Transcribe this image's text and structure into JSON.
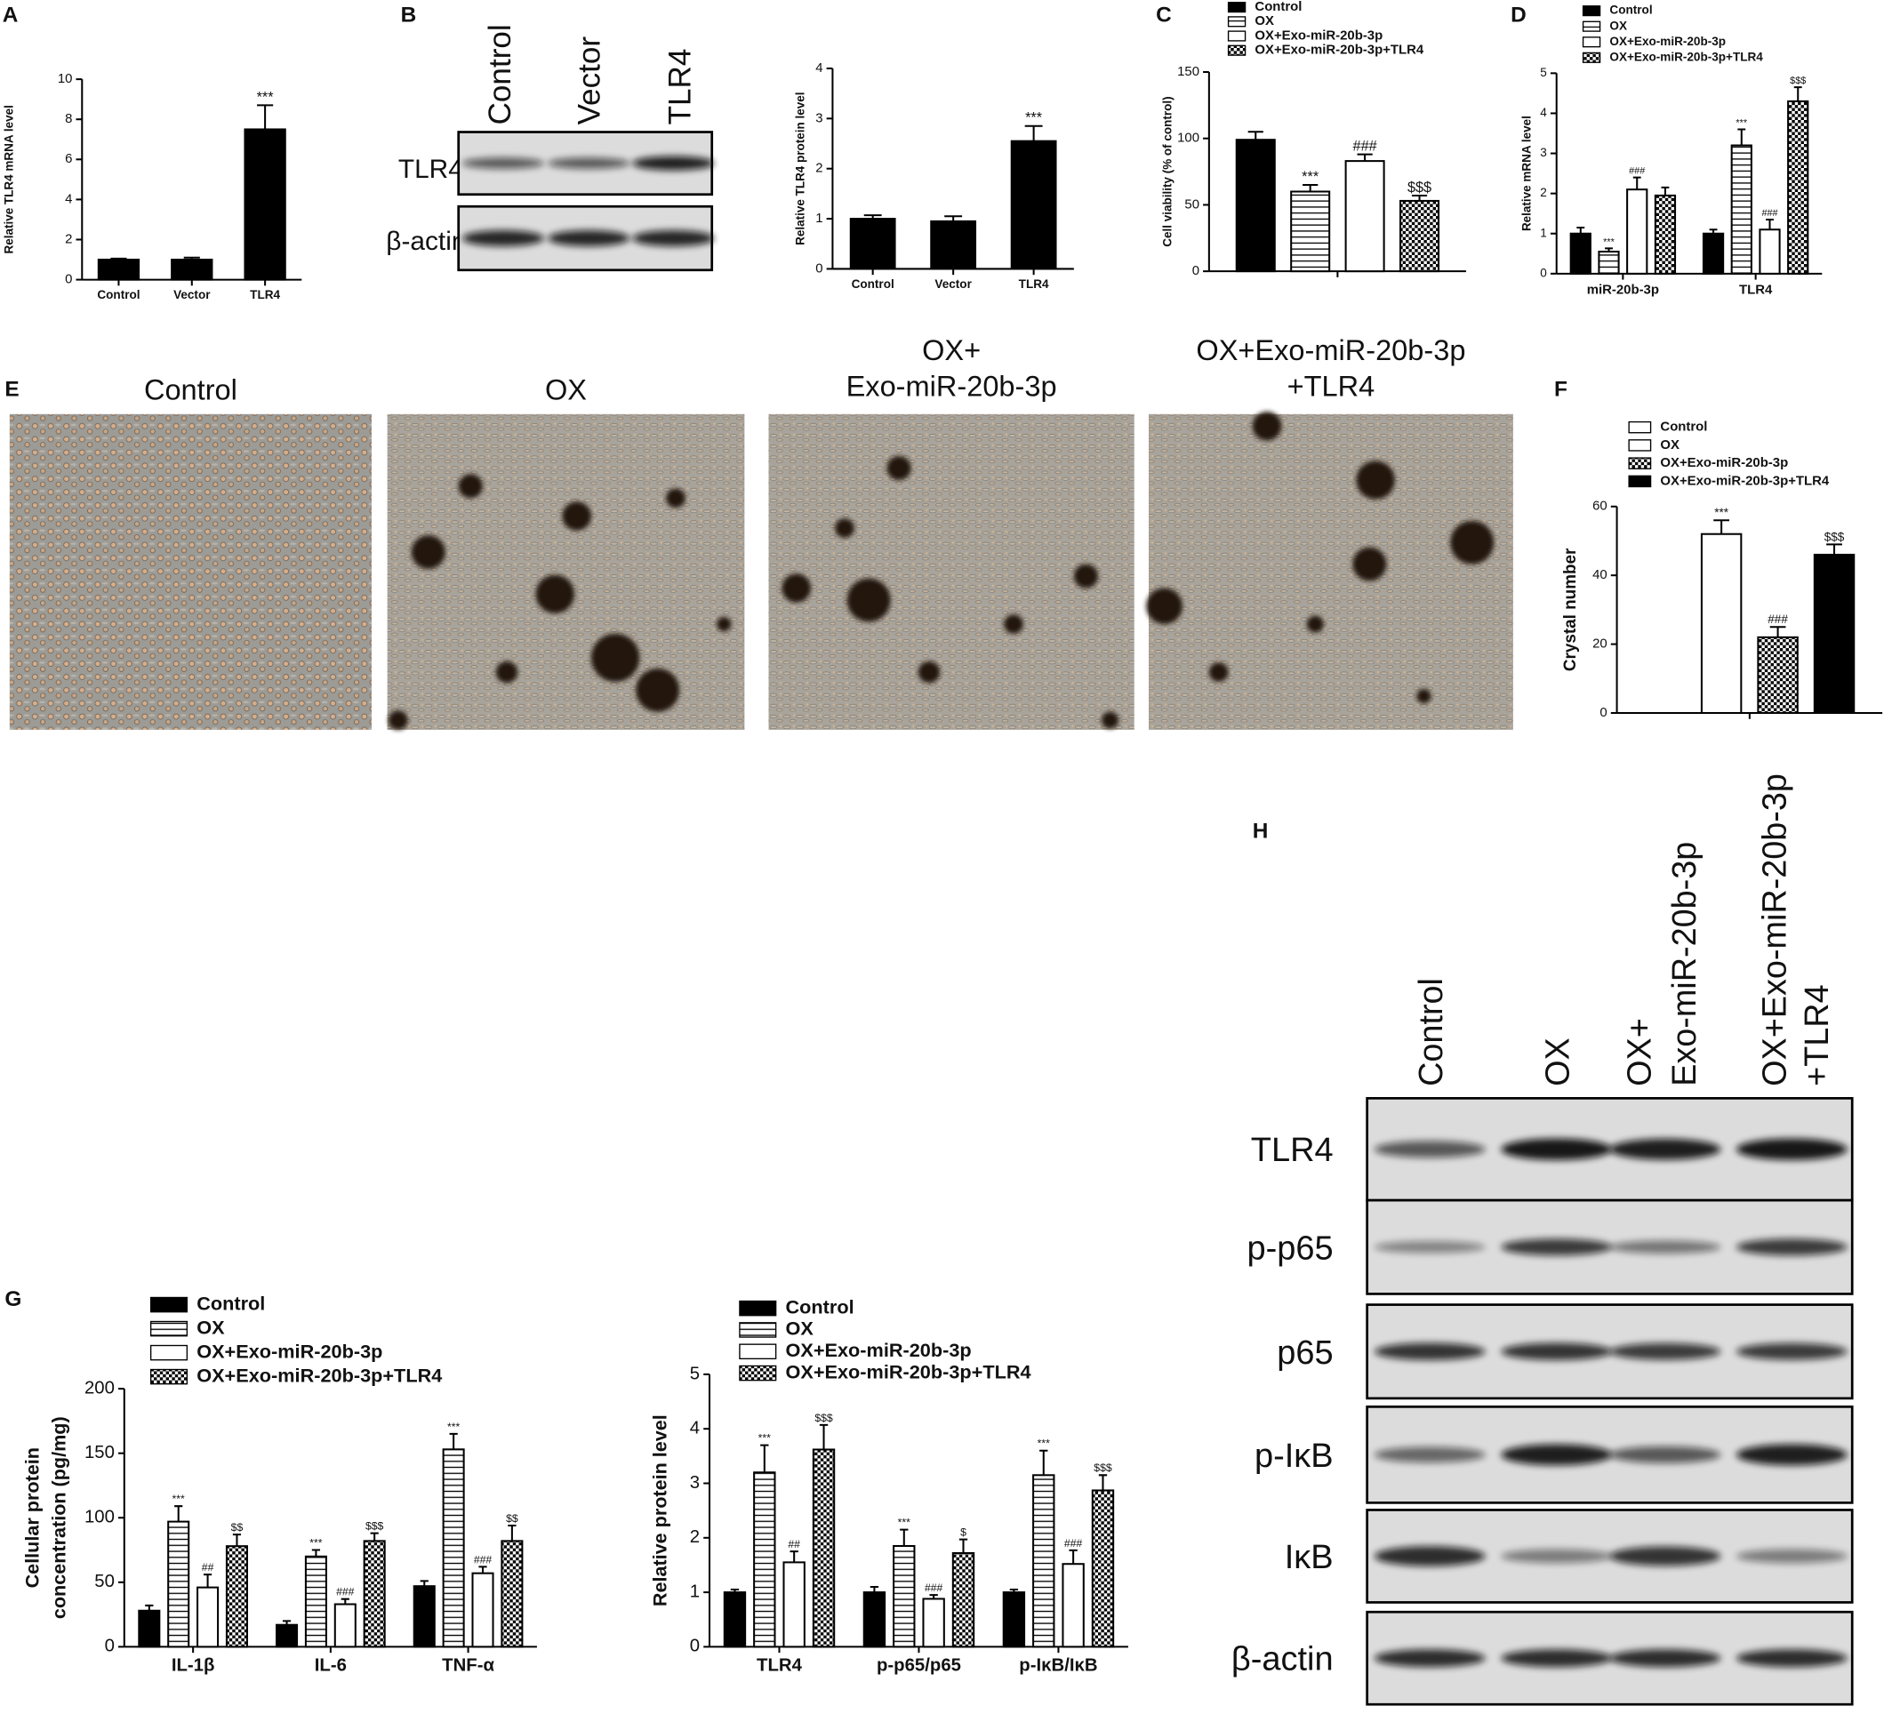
{
  "panel_labels": {
    "A": "A",
    "B": "B",
    "C": "C",
    "D": "D",
    "E": "E",
    "F": "F",
    "G": "G",
    "H": "H"
  },
  "blot_b": {
    "lanes": [
      "Control",
      "Vector",
      "TLR4"
    ],
    "rows": [
      "TLR4",
      "β-actin"
    ]
  },
  "micrographs": {
    "titles": [
      [
        "Control"
      ],
      [
        "OX"
      ],
      [
        "OX+",
        "Exo-miR-20b-3p"
      ],
      [
        "OX+Exo-miR-20b-3p",
        "+TLR4"
      ]
    ]
  },
  "blot_h": {
    "lanes": [
      [
        "Control"
      ],
      [
        "OX"
      ],
      [
        "OX+",
        "Exo-miR-20b-3p"
      ],
      [
        "OX+Exo-miR-20b-3p",
        "+TLR4"
      ]
    ],
    "rows": [
      "TLR4",
      "p-p65",
      "p65",
      "p-IκB",
      "IκB",
      "β-actin"
    ]
  },
  "chart_data": [
    {
      "type": "bar",
      "ylabel": [
        "Relative TLR4 mRNA level"
      ],
      "categories": [
        "Control",
        "Vector",
        "TLR4"
      ],
      "values": [
        1,
        1,
        7.5
      ],
      "errors": [
        0.05,
        0.1,
        1.2
      ],
      "annotations": [
        null,
        null,
        "***"
      ],
      "color": "#000000",
      "pattern": "solid",
      "ylim": [
        0,
        10
      ],
      "yticks": [
        0,
        2,
        4,
        6,
        8,
        10
      ]
    },
    {
      "type": "bar",
      "ylabel": [
        "Relative TLR4 protein level"
      ],
      "categories": [
        "Control",
        "Vector",
        "TLR4"
      ],
      "values": [
        1,
        0.95,
        2.55
      ],
      "errors": [
        0.07,
        0.1,
        0.3
      ],
      "annotations": [
        null,
        null,
        "***"
      ],
      "color": "#000000",
      "pattern": "solid",
      "ylim": [
        0,
        4
      ],
      "yticks": [
        0,
        1,
        2,
        3,
        4
      ]
    },
    {
      "type": "bar",
      "ylabel": [
        "Cell viability (% of control)"
      ],
      "categories": [
        null
      ],
      "series": [
        {
          "name": "Control",
          "color": "#000000",
          "pattern": "solid",
          "values": [
            99
          ],
          "errors": [
            6
          ],
          "annotations": [
            null
          ]
        },
        {
          "name": "OX",
          "color": "#000000",
          "pattern": "hlines",
          "values": [
            60
          ],
          "errors": [
            5
          ],
          "annotations": [
            "***"
          ]
        },
        {
          "name": "OX+Exo-miR-20b-3p",
          "color": "#000000",
          "pattern": "open",
          "values": [
            83
          ],
          "errors": [
            5
          ],
          "annotations": [
            "###"
          ]
        },
        {
          "name": "OX+Exo-miR-20b-3p+TLR4",
          "color": "#000000",
          "pattern": "checker",
          "values": [
            53
          ],
          "errors": [
            4
          ],
          "annotations": [
            "$$$"
          ]
        }
      ],
      "ylim": [
        0,
        150
      ],
      "yticks": [
        0,
        50,
        100,
        150
      ]
    },
    {
      "type": "bar",
      "ylabel": [
        "Relative mRNA level"
      ],
      "categories": [
        "miR-20b-3p",
        "TLR4"
      ],
      "series": [
        {
          "name": "Control",
          "color": "#000000",
          "pattern": "solid",
          "values": [
            1,
            1
          ],
          "errors": [
            0.15,
            0.1
          ],
          "annotations": [
            null,
            null
          ]
        },
        {
          "name": "OX",
          "color": "#000000",
          "pattern": "hlines",
          "values": [
            0.55,
            3.2
          ],
          "errors": [
            0.08,
            0.4
          ],
          "annotations": [
            "***",
            "***"
          ]
        },
        {
          "name": "OX+Exo-miR-20b-3p",
          "color": "#000000",
          "pattern": "open",
          "values": [
            2.1,
            1.1
          ],
          "errors": [
            0.3,
            0.25
          ],
          "annotations": [
            "###",
            "###"
          ]
        },
        {
          "name": "OX+Exo-miR-20b-3p+TLR4",
          "color": "#000000",
          "pattern": "checker",
          "values": [
            1.95,
            4.3
          ],
          "errors": [
            0.2,
            0.35
          ],
          "annotations": [
            null,
            "$$$"
          ]
        }
      ],
      "ylim": [
        0,
        5
      ],
      "yticks": [
        0,
        1,
        2,
        3,
        4,
        5
      ]
    },
    {
      "type": "bar",
      "ylabel": [
        "Crystal number"
      ],
      "categories": [
        null
      ],
      "series": [
        {
          "name": "Control",
          "color": "#000000",
          "pattern": "open",
          "values": [
            0
          ],
          "errors": [
            0
          ],
          "annotations": [
            null
          ]
        },
        {
          "name": "OX",
          "color": "#000000",
          "pattern": "open",
          "values": [
            52
          ],
          "errors": [
            4
          ],
          "annotations": [
            "***"
          ]
        },
        {
          "name": "OX+Exo-miR-20b-3p",
          "color": "#000000",
          "pattern": "checker",
          "values": [
            22
          ],
          "errors": [
            3
          ],
          "annotations": [
            "###"
          ]
        },
        {
          "name": "OX+Exo-miR-20b-3p+TLR4",
          "color": "#000000",
          "pattern": "solid",
          "values": [
            46
          ],
          "errors": [
            3
          ],
          "annotations": [
            "$$$"
          ]
        }
      ],
      "ylim": [
        0,
        60
      ],
      "yticks": [
        0,
        20,
        40,
        60
      ]
    },
    {
      "type": "bar",
      "ylabel": [
        "Cellular protein",
        "concentration (pg/mg)"
      ],
      "categories": [
        "IL-1β",
        "IL-6",
        "TNF-α"
      ],
      "series": [
        {
          "name": "Control",
          "color": "#000000",
          "pattern": "solid",
          "values": [
            28,
            17,
            47
          ],
          "errors": [
            4,
            3,
            4
          ],
          "annotations": [
            null,
            null,
            null
          ]
        },
        {
          "name": "OX",
          "color": "#000000",
          "pattern": "hlines",
          "values": [
            97,
            70,
            153
          ],
          "errors": [
            12,
            5,
            12
          ],
          "annotations": [
            "***",
            "***",
            "***"
          ]
        },
        {
          "name": "OX+Exo-miR-20b-3p",
          "color": "#000000",
          "pattern": "open",
          "values": [
            46,
            33,
            57
          ],
          "errors": [
            10,
            4,
            5
          ],
          "annotations": [
            "##",
            "###",
            "###"
          ]
        },
        {
          "name": "OX+Exo-miR-20b-3p+TLR4",
          "color": "#000000",
          "pattern": "checker",
          "values": [
            78,
            82,
            82
          ],
          "errors": [
            9,
            6,
            12
          ],
          "annotations": [
            "$$",
            "$$$",
            "$$"
          ]
        }
      ],
      "ylim": [
        0,
        200
      ],
      "yticks": [
        0,
        50,
        100,
        150,
        200
      ]
    },
    {
      "type": "bar",
      "ylabel": [
        "Relative protein level"
      ],
      "categories": [
        "TLR4",
        "p-p65/p65",
        "p-IκB/IκB"
      ],
      "series": [
        {
          "name": "Control",
          "color": "#000000",
          "pattern": "solid",
          "values": [
            1,
            1,
            1
          ],
          "errors": [
            0.05,
            0.1,
            0.05
          ],
          "annotations": [
            null,
            null,
            null
          ]
        },
        {
          "name": "OX",
          "color": "#000000",
          "pattern": "hlines",
          "values": [
            3.2,
            1.85,
            3.15
          ],
          "errors": [
            0.5,
            0.3,
            0.45
          ],
          "annotations": [
            "***",
            "***",
            "***"
          ]
        },
        {
          "name": "OX+Exo-miR-20b-3p",
          "color": "#000000",
          "pattern": "open",
          "values": [
            1.55,
            0.88,
            1.52
          ],
          "errors": [
            0.2,
            0.07,
            0.25
          ],
          "annotations": [
            "##",
            "###",
            "###"
          ]
        },
        {
          "name": "OX+Exo-miR-20b-3p+TLR4",
          "color": "#000000",
          "pattern": "checker",
          "values": [
            3.62,
            1.72,
            2.87
          ],
          "errors": [
            0.45,
            0.25,
            0.28
          ],
          "annotations": [
            "$$$",
            "$",
            "$$$"
          ]
        }
      ],
      "ylim": [
        0,
        5
      ],
      "yticks": [
        0,
        1,
        2,
        3,
        4,
        5
      ]
    }
  ]
}
